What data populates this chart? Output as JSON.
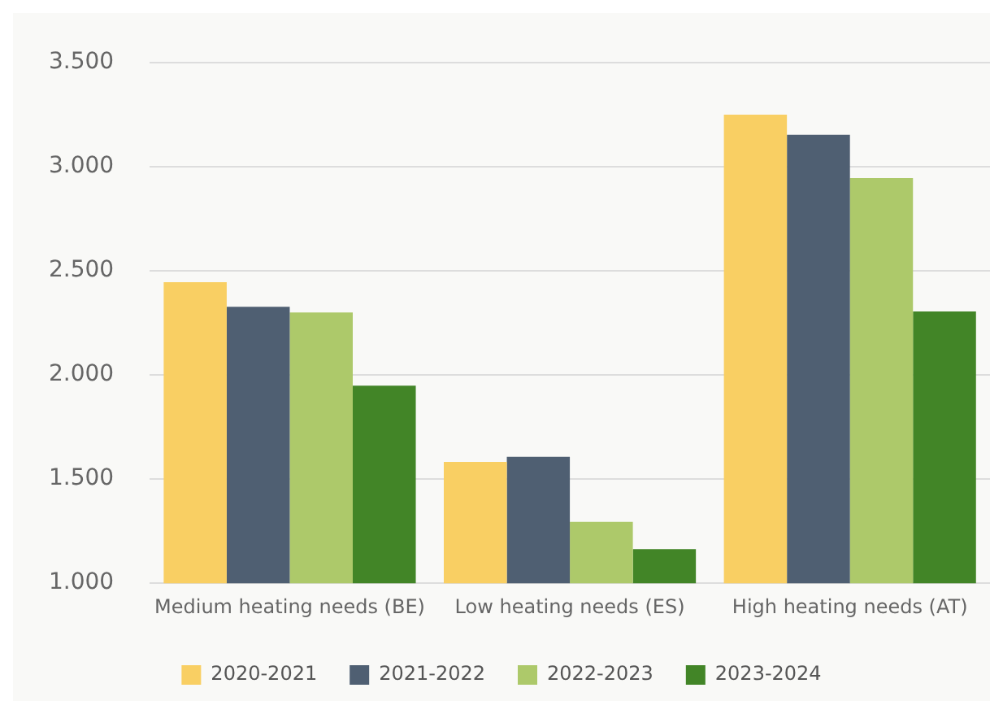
{
  "chart_data": {
    "type": "bar",
    "categories": [
      "Medium heating needs (BE)",
      "Low heating needs (ES)",
      "High heating needs (AT)"
    ],
    "series": [
      {
        "name": "2020-2021",
        "color": "#f9cf63",
        "values": [
          2445,
          1582,
          3249
        ]
      },
      {
        "name": "2021-2022",
        "color": "#4f5f72",
        "values": [
          2327,
          1607,
          3153
        ]
      },
      {
        "name": "2022-2023",
        "color": "#adc96a",
        "values": [
          2300,
          1295,
          2945
        ]
      },
      {
        "name": "2023-2024",
        "color": "#428527",
        "values": [
          1948,
          1164,
          2305
        ]
      }
    ],
    "ylim": [
      1000,
      3500
    ],
    "yticks": [
      {
        "value": 1000,
        "label": "1.000"
      },
      {
        "value": 1500,
        "label": "1.500"
      },
      {
        "value": 2000,
        "label": "2.000"
      },
      {
        "value": 2500,
        "label": "2.500"
      },
      {
        "value": 3000,
        "label": "3.000"
      },
      {
        "value": 3500,
        "label": "3.500"
      }
    ],
    "grid": "y",
    "legend": "bottom"
  }
}
